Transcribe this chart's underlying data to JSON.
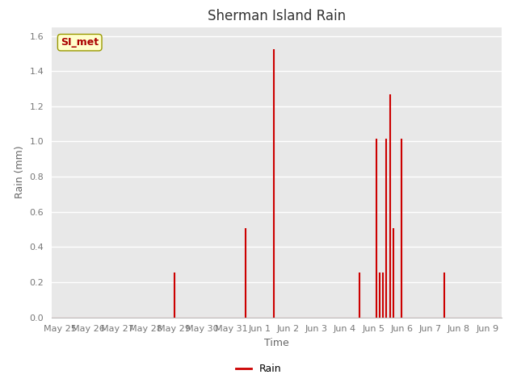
{
  "title": "Sherman Island Rain",
  "xlabel": "Time",
  "ylabel": "Rain (mm)",
  "legend_label": "Rain",
  "legend_box_label": "SI_met",
  "line_color": "#cc0000",
  "plot_bg_color": "#e8e8e8",
  "fig_bg_color": "#ffffff",
  "ylim": [
    0,
    1.65
  ],
  "yticks": [
    0.0,
    0.2,
    0.4,
    0.6,
    0.8,
    1.0,
    1.2,
    1.4,
    1.6
  ],
  "xtick_labels": [
    "May 25",
    "May 26",
    "May 27",
    "May 28",
    "May 29",
    "May 30",
    "May 31",
    "Jun 1",
    "Jun 2",
    "Jun 3",
    "Jun 4",
    "Jun 5",
    "Jun 6",
    "Jun 7",
    "Jun 8",
    "Jun 9"
  ],
  "title_fontsize": 12,
  "axis_label_fontsize": 9,
  "tick_fontsize": 8,
  "spike_data": [
    [
      4.0,
      0.254
    ],
    [
      6.5,
      0.508
    ],
    [
      7.5,
      1.524
    ],
    [
      10.5,
      0.254
    ],
    [
      11.1,
      1.016
    ],
    [
      11.22,
      0.254
    ],
    [
      11.34,
      0.254
    ],
    [
      11.46,
      1.016
    ],
    [
      11.58,
      1.27
    ],
    [
      11.7,
      0.508
    ],
    [
      12.0,
      1.016
    ],
    [
      13.5,
      0.254
    ]
  ],
  "grid_color": "#ffffff",
  "grid_linewidth": 1.0,
  "spine_color": "#bbbbbb",
  "tick_color": "#777777",
  "title_color": "#333333",
  "label_color": "#666666"
}
